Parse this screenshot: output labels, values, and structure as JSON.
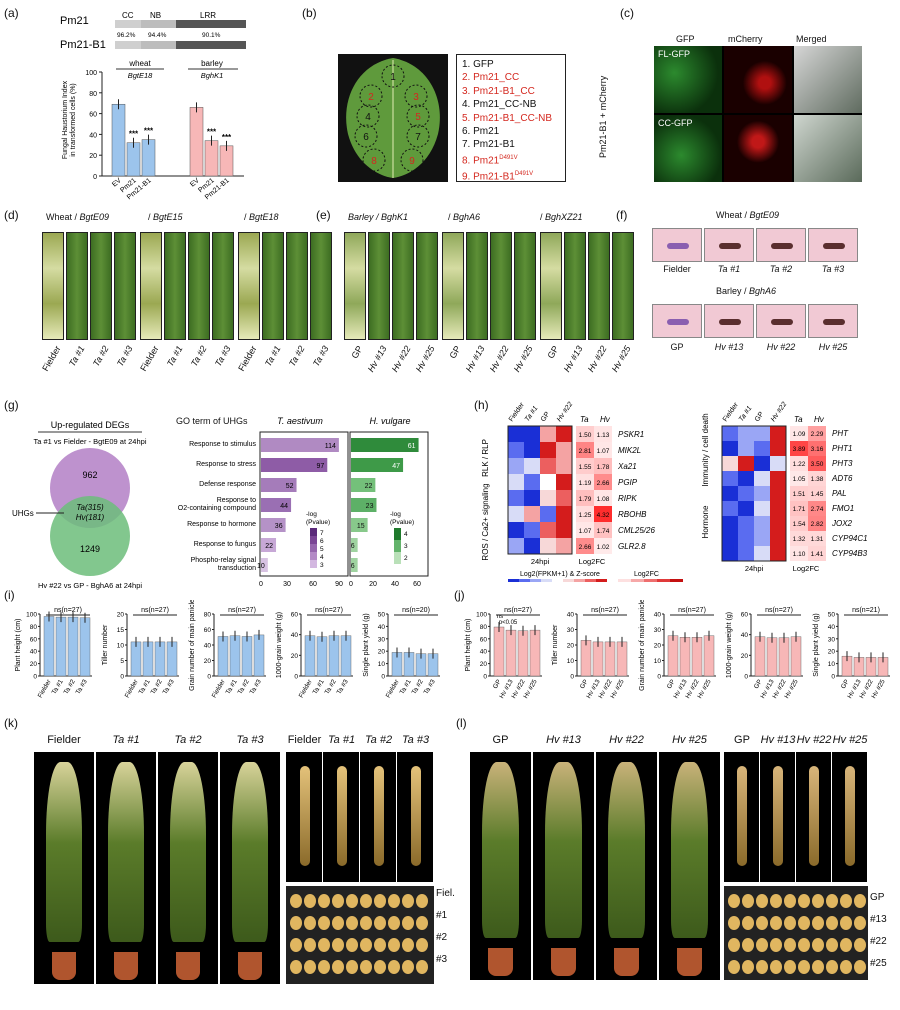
{
  "panels": {
    "a": {
      "label": "(a)",
      "domain_rows": [
        "Pm21",
        "Pm21-B1"
      ],
      "domains": [
        "CC",
        "NB",
        "LRR"
      ],
      "identity": [
        "96.2%",
        "94.4%",
        "90.1%"
      ],
      "groups": [
        "wheat",
        "barley"
      ],
      "group_isolates": [
        "BgtE18",
        "BghK1"
      ],
      "ylabel_1": "Fungal Haustorium Index",
      "ylabel_2": "in transformed cells (%)",
      "yticks": [
        "0",
        "20",
        "40",
        "60",
        "80",
        "100"
      ],
      "xcats": [
        "EV",
        "Pm21",
        "Pm21-B1",
        "EV",
        "Pm21",
        "Pm21-B1"
      ],
      "sig": "***"
    },
    "b": {
      "label": "(b)",
      "legend": [
        "1. GFP",
        "2. Pm21_CC",
        "3. Pm21-B1_CC",
        "4. Pm21_CC-NB",
        "5. Pm21-B1_CC-NB",
        "6. Pm21",
        "7. Pm21-B1",
        "8. Pm21",
        "9. Pm21-B1"
      ],
      "superscript": "D491V",
      "spot_numbers": [
        "1",
        "2",
        "3",
        "4",
        "5",
        "6",
        "7",
        "8",
        "9"
      ]
    },
    "c": {
      "label": "(c)",
      "cols": [
        "GFP",
        "mCherry",
        "Merged"
      ],
      "rows": [
        "FL-GFP",
        "CC-GFP"
      ],
      "side": "Pm21-B1 + mCherry"
    },
    "d": {
      "label": "(d)",
      "headers": [
        "Wheat / ",
        "BgtE09",
        "/ ",
        "BgtE15",
        "/ ",
        "BgtE18"
      ],
      "leaves": [
        "Fielder",
        "Ta #1",
        "Ta #2",
        "Ta #3",
        "Fielder",
        "Ta #1",
        "Ta #2",
        "Ta #3",
        "Fielder",
        "Ta #1",
        "Ta #2",
        "Ta #3"
      ]
    },
    "e": {
      "label": "(e)",
      "headers": [
        "Barley / ",
        "BghK1",
        "/ ",
        "BghA6",
        "/ ",
        "BghXZ21"
      ],
      "leaves": [
        "GP",
        "Hv #13",
        "Hv #22",
        "Hv #25",
        "GP",
        "Hv #13",
        "Hv #22",
        "Hv #25",
        "GP",
        "Hv #13",
        "Hv #22",
        "Hv #25"
      ]
    },
    "f": {
      "label": "(f)",
      "top_title": [
        "Wheat / ",
        "BgtE09"
      ],
      "top_labels": [
        "Fielder",
        "Ta #1",
        "Ta #2",
        "Ta #3"
      ],
      "bottom_title": [
        "Barley / ",
        "BghA6"
      ],
      "bottom_labels": [
        "GP",
        "Hv #13",
        "Hv #22",
        "Hv #25"
      ]
    },
    "g": {
      "label": "(g)",
      "venn_title": "Up-regulated DEGs",
      "venn_top": "Ta #1 vs Fielder - BgtE09 at 24hpi",
      "venn_bottom": "Hv #22 vs GP - BghA6 at 24hpi",
      "venn_left": "962",
      "venn_right": "1249",
      "venn_mid1": "Ta(315)",
      "venn_mid2": "Hv(181)",
      "uhg": "UHGs",
      "go_title": "GO term of UHGs",
      "col1": "T. aestivum",
      "col2": "H. vulgare",
      "terms": [
        "Response to stimulus",
        "Response to stress",
        "Defense response",
        "Response to",
        "O2-containing compound",
        "Response to hormone",
        "Response to fungus",
        "Phospho-relay signal",
        "transduction"
      ],
      "ta_counts": [
        "114",
        "97",
        "52",
        "44",
        "36",
        "22",
        "10"
      ],
      "hv_counts": [
        "61",
        "47",
        "22",
        "23",
        "15",
        "6",
        "6"
      ],
      "ta_xticks": [
        "0",
        "30",
        "60",
        "90"
      ],
      "hv_xticks": [
        "0",
        "20",
        "40",
        "60"
      ],
      "legend_title1": "-log",
      "legend_title2": "(Pvalue)",
      "ta_legend": [
        "7",
        "6",
        "5",
        "4",
        "3"
      ],
      "hv_legend": [
        "4",
        "3",
        "2"
      ]
    },
    "h": {
      "label": "(h)",
      "cols_left": [
        "Fielder",
        "Ta #1",
        "GP",
        "Hv #22"
      ],
      "fc_cols": [
        "Ta",
        "Hv"
      ],
      "group1": "RLK / RLP",
      "group2": "ROS / Ca2+ signaling",
      "genes1": [
        "PSKR1",
        "MIK2L",
        "Xa21",
        "PGIP",
        "RIPK",
        "RBOHB",
        "CML25/26",
        "GLR2.8"
      ],
      "fc1_ta": [
        "1.50",
        "2.81",
        "1.55",
        "1.19",
        "1.79",
        "1.25",
        "1.07",
        "2.66"
      ],
      "fc1_hv": [
        "1.13",
        "1.07",
        "1.78",
        "2.66",
        "1.08",
        "4.32",
        "1.74",
        "1.02"
      ],
      "group3": "Immunity / cell death",
      "group4": "Hormone",
      "genes2": [
        "PHT",
        "PHT1",
        "PHT3",
        "ADT6",
        "PAL",
        "FMO1",
        "JOX2",
        "CYP94C1",
        "CYP94B3"
      ],
      "fc2_ta": [
        "1.09",
        "3.89",
        "1.22",
        "1.05",
        "1.51",
        "1.71",
        "1.54",
        "1.32",
        "1.10"
      ],
      "fc2_hv": [
        "2.29",
        "3.16",
        "3.50",
        "1.38",
        "1.45",
        "2.74",
        "2.82",
        "1.31",
        "1.41"
      ],
      "time": "24hpi",
      "log2fc": "Log2FC",
      "leg1_title": "Log2(FPKM+1) & Z-score",
      "leg1_ticks": [
        "-1.5",
        "0.0",
        "1.5"
      ],
      "leg2_title": "Log2FC",
      "leg2_ticks": [
        "1.0",
        "3.0",
        "4.5"
      ]
    },
    "i": {
      "label": "(i)",
      "plots": [
        {
          "ylabel": "Plant height (cm)",
          "ns": "ns(n=27)",
          "yticks": [
            "0",
            "20",
            "40",
            "60",
            "80",
            "100"
          ]
        },
        {
          "ylabel": "Tiller number",
          "ns": "ns(n=27)",
          "yticks": [
            "0",
            "5",
            "10",
            "15",
            "20"
          ]
        },
        {
          "ylabel": "Grain number of main panicle",
          "ns": "ns(n=27)",
          "yticks": [
            "0",
            "20",
            "40",
            "60",
            "80"
          ]
        },
        {
          "ylabel": "1000-grain weight (g)",
          "ns": "ns(n=27)",
          "yticks": [
            "0",
            "20",
            "40",
            "60"
          ]
        },
        {
          "ylabel": "Single plant yield (g)",
          "ns": "ns(n=20)",
          "yticks": [
            "0",
            "10",
            "20",
            "30",
            "40",
            "50"
          ]
        }
      ],
      "xcats": [
        "Fielder",
        "Ta #1",
        "Ta #2",
        "Ta #3"
      ]
    },
    "j": {
      "label": "(j)",
      "plots": [
        {
          "ylabel": "Plant height (cm)",
          "ns": "ns(n=27)",
          "yticks": [
            "0",
            "20",
            "40",
            "60",
            "80",
            "100"
          ]
        },
        {
          "ylabel": "Tiller number",
          "ns": "ns(n=27)",
          "yticks": [
            "0",
            "10",
            "20",
            "30",
            "40"
          ]
        },
        {
          "ylabel": "Grain number of main panicle",
          "ns": "ns(n=27)",
          "yticks": [
            "0",
            "10",
            "20",
            "30",
            "40"
          ]
        },
        {
          "ylabel": "1000-grain weight (g)",
          "ns": "ns(n=27)",
          "yticks": [
            "0",
            "20",
            "40",
            "60"
          ]
        },
        {
          "ylabel": "Single plant yield (g)",
          "ns": "ns(n=21)",
          "yticks": [
            "0",
            "10",
            "20",
            "30",
            "40",
            "50"
          ]
        }
      ],
      "xcats": [
        "GP",
        "Hv #13",
        "Hv #22",
        "Hv #25"
      ],
      "extra": [
        "ns",
        "p<0.05"
      ]
    },
    "k": {
      "label": "(k)",
      "plants": [
        "Fielder",
        "Ta #1",
        "Ta #2",
        "Ta #3"
      ],
      "spikes": [
        "Fielder",
        "Ta #1",
        "Ta #2",
        "Ta #3"
      ],
      "grains": [
        "Fiel.",
        "#1",
        "#2",
        "#3"
      ]
    },
    "l": {
      "label": "(l)",
      "plants": [
        "GP",
        "Hv #13",
        "Hv #22",
        "Hv #25"
      ],
      "spikes": [
        "GP",
        "Hv #13",
        "Hv #22",
        "Hv #25"
      ],
      "grains": [
        "GP",
        "#13",
        "#22",
        "#25"
      ]
    }
  },
  "chart_data": [
    {
      "type": "bar",
      "title": "",
      "ylabel": "Fungal Haustorium Index in transformed cells (%)",
      "categories": [
        "EV",
        "Pm21",
        "Pm21-B1",
        "EV",
        "Pm21",
        "Pm21-B1"
      ],
      "values": [
        69,
        32,
        35,
        66,
        34,
        29
      ],
      "ylim": [
        0,
        100
      ],
      "groups": [
        "wheat",
        "wheat",
        "wheat",
        "barley",
        "barley",
        "barley"
      ]
    },
    {
      "type": "bar",
      "title": "GO term of UHGs",
      "series": [
        {
          "name": "T. aestivum",
          "values": [
            114,
            97,
            52,
            44,
            36,
            22,
            10
          ]
        },
        {
          "name": "H. vulgare",
          "values": [
            61,
            47,
            22,
            23,
            15,
            6,
            6
          ]
        }
      ],
      "categories": [
        "Response to stimulus",
        "Response to stress",
        "Defense response",
        "Response to O2-containing compound",
        "Response to hormone",
        "Response to fungus",
        "Phospho-relay signal transduction"
      ]
    },
    {
      "type": "bar",
      "title": "",
      "categories": [
        "Fielder",
        "Ta #1",
        "Ta #2",
        "Ta #3"
      ],
      "series": [
        {
          "name": "Plant height (cm)",
          "values": [
            96,
            95,
            95,
            94
          ]
        },
        {
          "name": "Tiller number",
          "values": [
            11,
            11,
            11,
            11
          ]
        },
        {
          "name": "Grain number of main panicle",
          "values": [
            51,
            52,
            51,
            53
          ]
        },
        {
          "name": "1000-grain weight (g)",
          "values": [
            39,
            38,
            39,
            39
          ]
        },
        {
          "name": "Single plant yield (g)",
          "values": [
            19,
            19,
            18,
            18
          ]
        }
      ]
    },
    {
      "type": "bar",
      "title": "",
      "categories": [
        "GP",
        "Hv #13",
        "Hv #22",
        "Hv #25"
      ],
      "series": [
        {
          "name": "Plant height (cm)",
          "values": [
            79,
            74,
            73,
            74
          ]
        },
        {
          "name": "Tiller number",
          "values": [
            23,
            22,
            22,
            22
          ]
        },
        {
          "name": "Grain number of main panicle",
          "values": [
            26,
            25,
            25,
            26
          ]
        },
        {
          "name": "1000-grain weight (g)",
          "values": [
            38,
            37,
            37,
            38
          ]
        },
        {
          "name": "Single plant yield (g)",
          "values": [
            16,
            15,
            15,
            15
          ]
        }
      ]
    }
  ]
}
